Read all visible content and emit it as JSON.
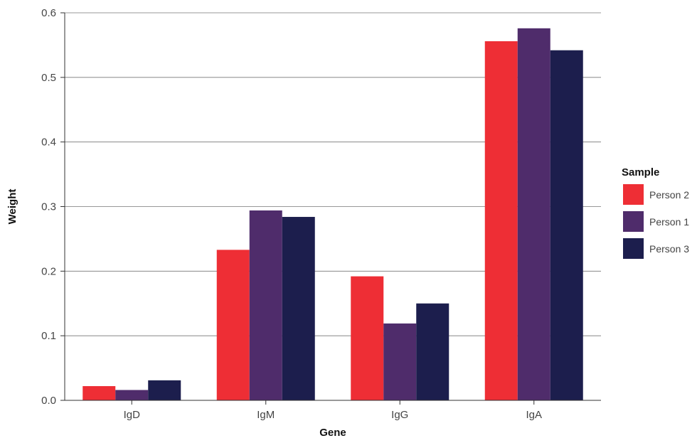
{
  "chart_data": {
    "type": "bar",
    "title": "",
    "xlabel": "Gene",
    "ylabel": "Weight",
    "categories": [
      "IgD",
      "IgM",
      "IgG",
      "IgA"
    ],
    "ylim": [
      0,
      0.6
    ],
    "yticks": [
      "0.0",
      "0.1",
      "0.2",
      "0.3",
      "0.4",
      "0.5",
      "0.6"
    ],
    "grid": true,
    "legend": {
      "title": "Sample",
      "position": "right"
    },
    "series": [
      {
        "name": "Person 2",
        "color": "#ee2e35",
        "values": [
          0.022,
          0.233,
          0.192,
          0.556
        ]
      },
      {
        "name": "Person 1",
        "color": "#4f2c6b",
        "values": [
          0.016,
          0.294,
          0.119,
          0.576
        ]
      },
      {
        "name": "Person 3",
        "color": "#1c1e4d",
        "values": [
          0.031,
          0.284,
          0.15,
          0.542
        ]
      }
    ]
  }
}
